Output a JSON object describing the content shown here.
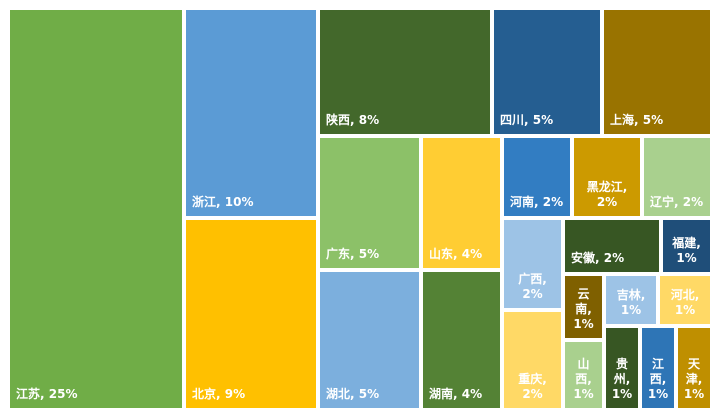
{
  "chart_data": {
    "type": "treemap",
    "items": [
      {
        "name": "江苏",
        "value": "25%",
        "color": "#70ad47"
      },
      {
        "name": "浙江",
        "value": "10%",
        "color": "#5b9bd5"
      },
      {
        "name": "北京",
        "value": "9%",
        "color": "#ffc000"
      },
      {
        "name": "陕西",
        "value": "8%",
        "color": "#43682b"
      },
      {
        "name": "广东",
        "value": "5%",
        "color": "#8cc168"
      },
      {
        "name": "湖北",
        "value": "5%",
        "color": "#7cafdd"
      },
      {
        "name": "四川",
        "value": "5%",
        "color": "#255e91"
      },
      {
        "name": "上海",
        "value": "5%",
        "color": "#997300"
      },
      {
        "name": "山东",
        "value": "4%",
        "color": "#ffcd33"
      },
      {
        "name": "湖南",
        "value": "4%",
        "color": "#548235"
      },
      {
        "name": "河南",
        "value": "2%",
        "color": "#327dc2"
      },
      {
        "name": "黑龙江",
        "value": "2%",
        "color": "#cc9a00"
      },
      {
        "name": "辽宁",
        "value": "2%",
        "color": "#a9d08e"
      },
      {
        "name": "安徽",
        "value": "2%",
        "color": "#375623"
      },
      {
        "name": "广西",
        "value": "2%",
        "color": "#9dc3e6"
      },
      {
        "name": "重庆",
        "value": "2%",
        "color": "#ffd966"
      },
      {
        "name": "福建",
        "value": "1%",
        "color": "#1f4e79"
      },
      {
        "name": "云南",
        "value": "1%",
        "color": "#7f6000"
      },
      {
        "name": "吉林",
        "value": "1%",
        "color": "#9dc3e6"
      },
      {
        "name": "河北",
        "value": "1%",
        "color": "#ffd966"
      },
      {
        "name": "山西",
        "value": "1%",
        "color": "#a9d08e"
      },
      {
        "name": "贵州",
        "value": "1%",
        "color": "#375623"
      },
      {
        "name": "江西",
        "value": "1%",
        "color": "#2e75b6"
      },
      {
        "name": "天津",
        "value": "1%",
        "color": "#bf8f00"
      }
    ]
  }
}
